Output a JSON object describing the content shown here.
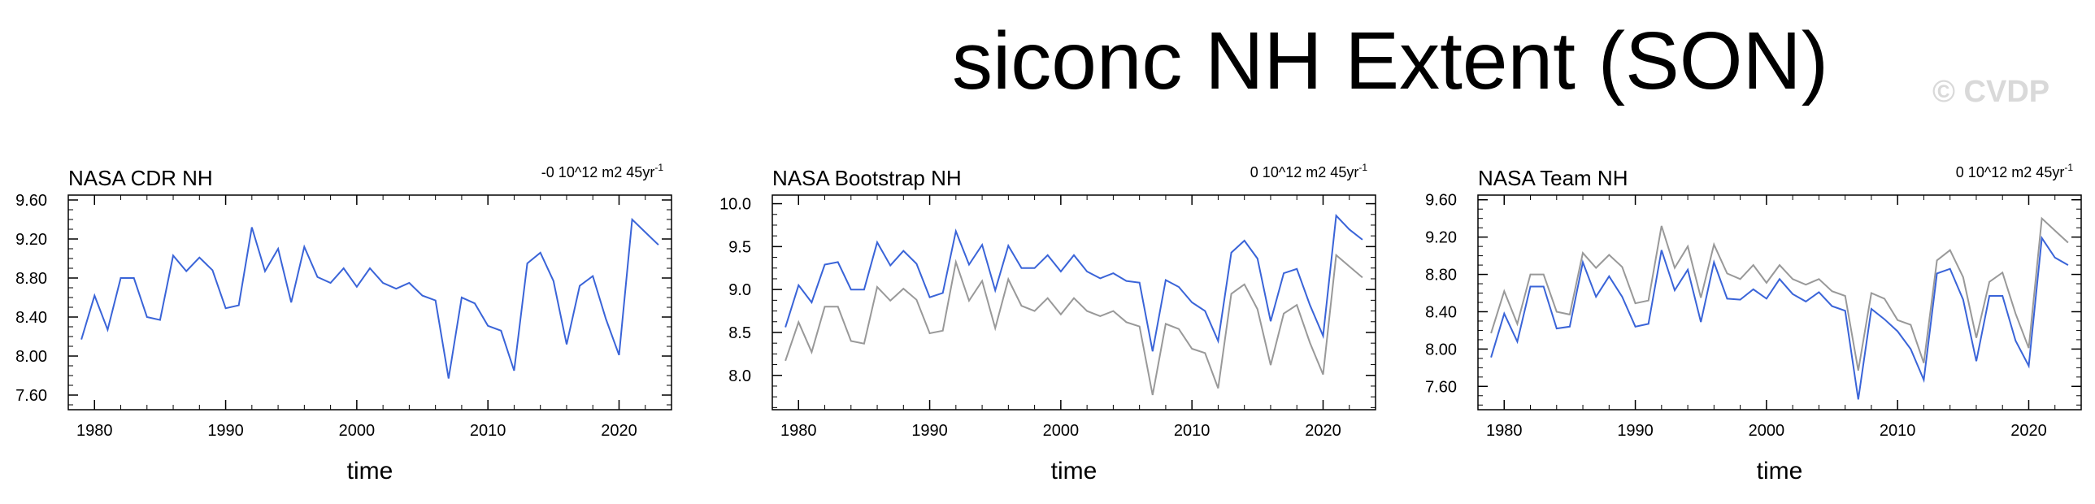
{
  "title": "siconc NH Extent (SON)",
  "watermark": "© CVDP",
  "colors": {
    "primary": "#3a64d8",
    "reference": "#999999",
    "axis": "#000000"
  },
  "x": [
    1979,
    1980,
    1981,
    1982,
    1983,
    1984,
    1985,
    1986,
    1987,
    1988,
    1989,
    1990,
    1991,
    1992,
    1993,
    1994,
    1995,
    1996,
    1997,
    1998,
    1999,
    2000,
    2001,
    2002,
    2003,
    2004,
    2005,
    2006,
    2007,
    2008,
    2009,
    2010,
    2011,
    2012,
    2013,
    2014,
    2015,
    2016,
    2017,
    2018,
    2019,
    2020,
    2021,
    2022,
    2023
  ],
  "chart_data": [
    {
      "type": "line",
      "title": "NASA CDR NH",
      "trend_label": "-0 10^12 m2 45yr",
      "trend_exponent": "-1",
      "xlabel": "time",
      "ylabel": "",
      "xlim": [
        1978,
        2024
      ],
      "ylim": [
        7.45,
        9.65
      ],
      "x_ticks": [
        1980,
        1990,
        2000,
        2010,
        2020
      ],
      "y_ticks": [
        7.6,
        8.0,
        8.4,
        8.8,
        9.2,
        9.6
      ],
      "y_tick_labels": [
        "7.60",
        "8.00",
        "8.40",
        "8.80",
        "9.20",
        "9.60"
      ],
      "series": [
        {
          "role": "primary",
          "values": [
            8.17,
            8.62,
            8.27,
            8.8,
            8.8,
            8.4,
            8.37,
            9.03,
            8.87,
            9.01,
            8.88,
            8.49,
            8.52,
            9.32,
            8.87,
            9.1,
            8.55,
            9.12,
            8.81,
            8.75,
            8.9,
            8.71,
            8.9,
            8.75,
            8.69,
            8.75,
            8.62,
            8.57,
            7.77,
            8.6,
            8.54,
            8.31,
            8.26,
            7.85,
            8.95,
            9.06,
            8.77,
            8.12,
            8.72,
            8.82,
            8.38,
            8.01,
            9.4,
            9.27,
            9.14
          ]
        }
      ]
    },
    {
      "type": "line",
      "title": "NASA Bootstrap NH",
      "trend_label": "0 10^12 m2 45yr",
      "trend_exponent": "-1",
      "xlabel": "time",
      "ylabel": "",
      "xlim": [
        1978,
        2024
      ],
      "ylim": [
        7.6,
        10.1
      ],
      "x_ticks": [
        1980,
        1990,
        2000,
        2010,
        2020
      ],
      "y_ticks": [
        8.0,
        8.5,
        9.0,
        9.5,
        10.0
      ],
      "y_tick_labels": [
        "8.0",
        "8.5",
        "9.0",
        "9.5",
        "10.0"
      ],
      "series": [
        {
          "role": "reference",
          "values": [
            8.17,
            8.62,
            8.27,
            8.8,
            8.8,
            8.4,
            8.37,
            9.03,
            8.87,
            9.01,
            8.88,
            8.49,
            8.52,
            9.32,
            8.87,
            9.1,
            8.55,
            9.12,
            8.81,
            8.75,
            8.9,
            8.71,
            8.9,
            8.75,
            8.69,
            8.75,
            8.62,
            8.57,
            7.77,
            8.6,
            8.54,
            8.31,
            8.26,
            7.85,
            8.95,
            9.06,
            8.77,
            8.12,
            8.72,
            8.82,
            8.38,
            8.01,
            9.4,
            9.27,
            9.14
          ]
        },
        {
          "role": "primary",
          "values": [
            8.56,
            9.05,
            8.85,
            9.29,
            9.32,
            9.0,
            9.0,
            9.55,
            9.28,
            9.45,
            9.3,
            8.91,
            8.96,
            9.68,
            9.29,
            9.52,
            8.99,
            9.51,
            9.25,
            9.25,
            9.4,
            9.21,
            9.4,
            9.21,
            9.13,
            9.19,
            9.1,
            9.08,
            8.28,
            9.11,
            9.03,
            8.85,
            8.75,
            8.4,
            9.43,
            9.57,
            9.36,
            8.63,
            9.19,
            9.24,
            8.82,
            8.46,
            9.86,
            9.7,
            9.58
          ]
        }
      ]
    },
    {
      "type": "line",
      "title": "NASA Team NH",
      "trend_label": "0 10^12 m2 45yr",
      "trend_exponent": "-1",
      "xlabel": "time",
      "ylabel": "",
      "xlim": [
        1978,
        2024
      ],
      "ylim": [
        7.35,
        9.65
      ],
      "x_ticks": [
        1980,
        1990,
        2000,
        2010,
        2020
      ],
      "y_ticks": [
        7.6,
        8.0,
        8.4,
        8.8,
        9.2,
        9.6
      ],
      "y_tick_labels": [
        "7.60",
        "8.00",
        "8.40",
        "8.80",
        "9.20",
        "9.60"
      ],
      "series": [
        {
          "role": "reference",
          "values": [
            8.17,
            8.62,
            8.27,
            8.8,
            8.8,
            8.4,
            8.37,
            9.03,
            8.87,
            9.01,
            8.88,
            8.49,
            8.52,
            9.32,
            8.87,
            9.1,
            8.55,
            9.12,
            8.81,
            8.75,
            8.9,
            8.71,
            8.9,
            8.75,
            8.69,
            8.75,
            8.62,
            8.57,
            7.77,
            8.6,
            8.54,
            8.31,
            8.26,
            7.85,
            8.95,
            9.06,
            8.77,
            8.12,
            8.72,
            8.82,
            8.38,
            8.01,
            9.4,
            9.27,
            9.14
          ]
        },
        {
          "role": "primary",
          "values": [
            7.91,
            8.38,
            8.08,
            8.67,
            8.67,
            8.22,
            8.24,
            8.93,
            8.56,
            8.78,
            8.56,
            8.24,
            8.27,
            9.06,
            8.63,
            8.85,
            8.29,
            8.93,
            8.54,
            8.53,
            8.64,
            8.54,
            8.75,
            8.59,
            8.51,
            8.61,
            8.46,
            8.41,
            7.46,
            8.43,
            8.32,
            8.19,
            8.0,
            7.67,
            8.81,
            8.86,
            8.53,
            7.87,
            8.57,
            8.57,
            8.09,
            7.82,
            9.19,
            8.98,
            8.9
          ]
        }
      ]
    }
  ]
}
